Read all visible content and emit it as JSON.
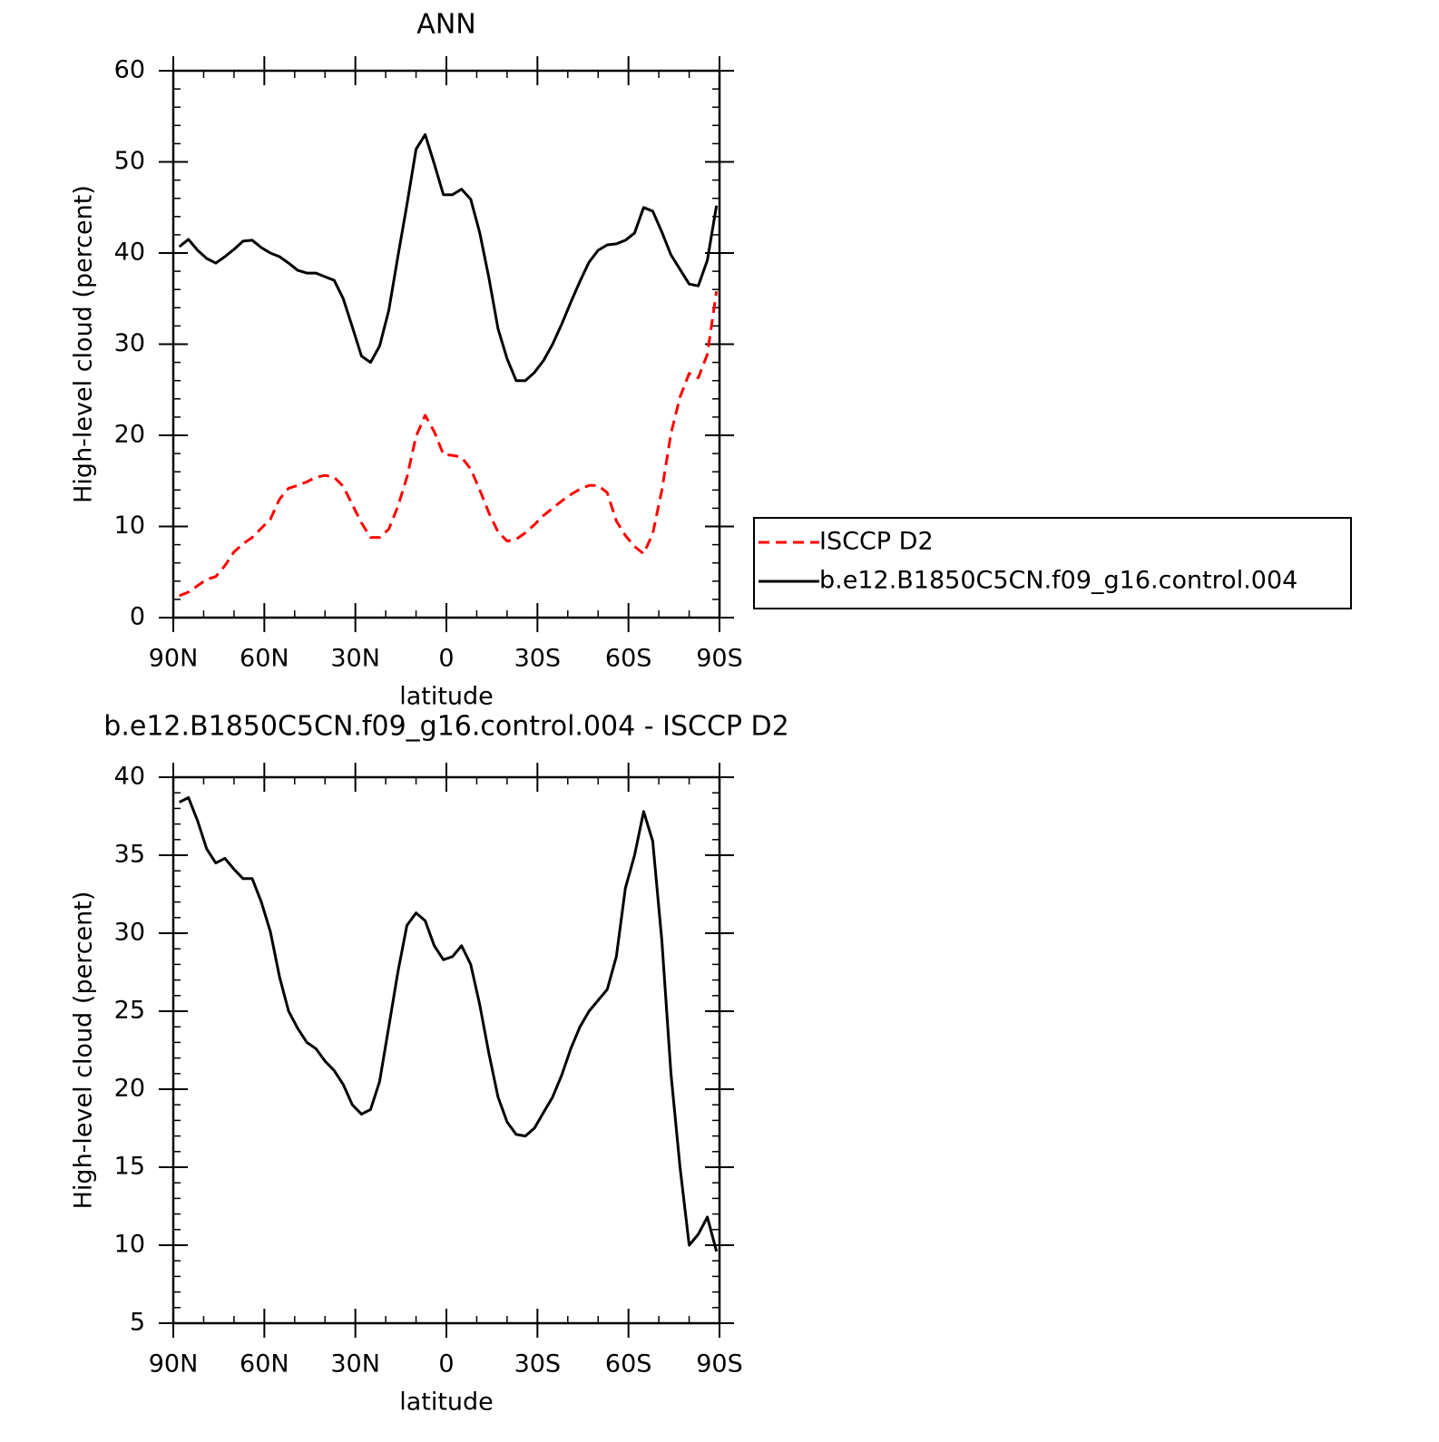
{
  "chart_data": [
    {
      "type": "line",
      "title": "ANN",
      "xlabel": "latitude",
      "ylabel": "High-level cloud (percent)",
      "x": [
        88,
        85,
        82,
        79,
        76,
        73,
        70,
        67,
        64,
        61,
        58,
        55,
        52,
        49,
        46,
        43,
        40,
        37,
        34,
        31,
        28,
        25,
        22,
        19,
        16,
        13,
        10,
        7,
        4,
        1,
        -2,
        -5,
        -8,
        -11,
        -14,
        -17,
        -20,
        -23,
        -26,
        -29,
        -32,
        -35,
        -38,
        -41,
        -44,
        -47,
        -50,
        -53,
        -56,
        -59,
        -62,
        -65,
        -68,
        -71,
        -74,
        -77,
        -80,
        -83,
        -86,
        -89
      ],
      "xlim": [
        90,
        -90
      ],
      "xticks": [
        {
          "value": 90,
          "label": "90N"
        },
        {
          "value": 60,
          "label": "60N"
        },
        {
          "value": 30,
          "label": "30N"
        },
        0,
        {
          "value": -30,
          "label": "30S"
        },
        {
          "value": -60,
          "label": "60S"
        },
        {
          "value": -90,
          "label": "90S"
        }
      ],
      "ylim": [
        0,
        60
      ],
      "yticks": [
        0,
        10,
        20,
        30,
        40,
        50,
        60
      ],
      "legend": "right",
      "series": [
        {
          "name": "ISCCP D2",
          "color": "#ff0000",
          "dash": true,
          "values": [
            2.4,
            2.8,
            3.5,
            4.2,
            4.5,
            5.7,
            7.2,
            8.1,
            8.8,
            9.8,
            10.8,
            13.0,
            14.2,
            14.5,
            14.9,
            15.4,
            15.6,
            15.4,
            14.4,
            12.4,
            10.4,
            8.8,
            8.8,
            9.7,
            12.2,
            15.4,
            19.9,
            22.2,
            20.4,
            17.9,
            17.8,
            17.6,
            16.3,
            14.0,
            11.5,
            9.4,
            8.4,
            8.6,
            9.3,
            10.2,
            11.2,
            12.0,
            12.8,
            13.5,
            14.1,
            14.5,
            14.5,
            13.7,
            10.6,
            9.0,
            7.8,
            7.0,
            9.2,
            14.0,
            20.2,
            24.2,
            26.8,
            26.3,
            28.9,
            35.8
          ]
        },
        {
          "name": "b.e12.B1850C5CN.f09_g16.control.004",
          "color": "#000000",
          "dash": false,
          "values": [
            40.7,
            41.5,
            40.3,
            39.4,
            38.9,
            39.6,
            40.4,
            41.3,
            41.4,
            40.6,
            40.0,
            39.6,
            38.9,
            38.1,
            37.8,
            37.8,
            37.4,
            37.0,
            35.0,
            31.9,
            28.7,
            28.0,
            29.8,
            33.7,
            39.6,
            45.3,
            51.4,
            53.0,
            49.8,
            46.4,
            46.4,
            47.0,
            45.9,
            42.2,
            37.3,
            31.7,
            28.4,
            26.0,
            26.0,
            26.9,
            28.2,
            30.0,
            32.2,
            34.6,
            36.9,
            39.0,
            40.3,
            40.9,
            41.0,
            41.4,
            42.2,
            45.0,
            44.6,
            42.3,
            39.8,
            38.2,
            36.6,
            36.4,
            39.2,
            45.2
          ]
        }
      ]
    },
    {
      "type": "line",
      "title": "b.e12.B1850C5CN.f09_g16.control.004 - ISCCP D2",
      "xlabel": "latitude",
      "ylabel": "High-level cloud (percent)",
      "x": [
        88,
        85,
        82,
        79,
        76,
        73,
        70,
        67,
        64,
        61,
        58,
        55,
        52,
        49,
        46,
        43,
        40,
        37,
        34,
        31,
        28,
        25,
        22,
        19,
        16,
        13,
        10,
        7,
        4,
        1,
        -2,
        -5,
        -8,
        -11,
        -14,
        -17,
        -20,
        -23,
        -26,
        -29,
        -32,
        -35,
        -38,
        -41,
        -44,
        -47,
        -50,
        -53,
        -56,
        -59,
        -62,
        -65,
        -68,
        -71,
        -74,
        -77,
        -80,
        -83,
        -86,
        -89
      ],
      "xlim": [
        90,
        -90
      ],
      "xticks": [
        {
          "value": 90,
          "label": "90N"
        },
        {
          "value": 60,
          "label": "60N"
        },
        {
          "value": 30,
          "label": "30N"
        },
        0,
        {
          "value": -30,
          "label": "30S"
        },
        {
          "value": -60,
          "label": "60S"
        },
        {
          "value": -90,
          "label": "90S"
        }
      ],
      "ylim": [
        5,
        40
      ],
      "yticks": [
        5,
        10,
        15,
        20,
        25,
        30,
        35,
        40
      ],
      "series": [
        {
          "color": "#000000",
          "dash": false,
          "values": [
            38.4,
            38.7,
            37.2,
            35.4,
            34.5,
            34.8,
            34.1,
            33.5,
            33.5,
            32.0,
            30.1,
            27.2,
            25.0,
            23.9,
            23.0,
            22.6,
            21.8,
            21.2,
            20.3,
            19.0,
            18.4,
            18.7,
            20.5,
            24.0,
            27.5,
            30.5,
            31.3,
            30.8,
            29.2,
            28.3,
            28.5,
            29.2,
            28.0,
            25.4,
            22.3,
            19.5,
            17.9,
            17.1,
            17.0,
            17.5,
            18.5,
            19.5,
            20.9,
            22.6,
            24.0,
            25.0,
            25.7,
            26.4,
            28.5,
            32.9,
            35.0,
            37.8,
            35.9,
            29.5,
            21.0,
            15.0,
            10.0,
            10.7,
            11.8,
            9.6
          ]
        }
      ]
    }
  ]
}
